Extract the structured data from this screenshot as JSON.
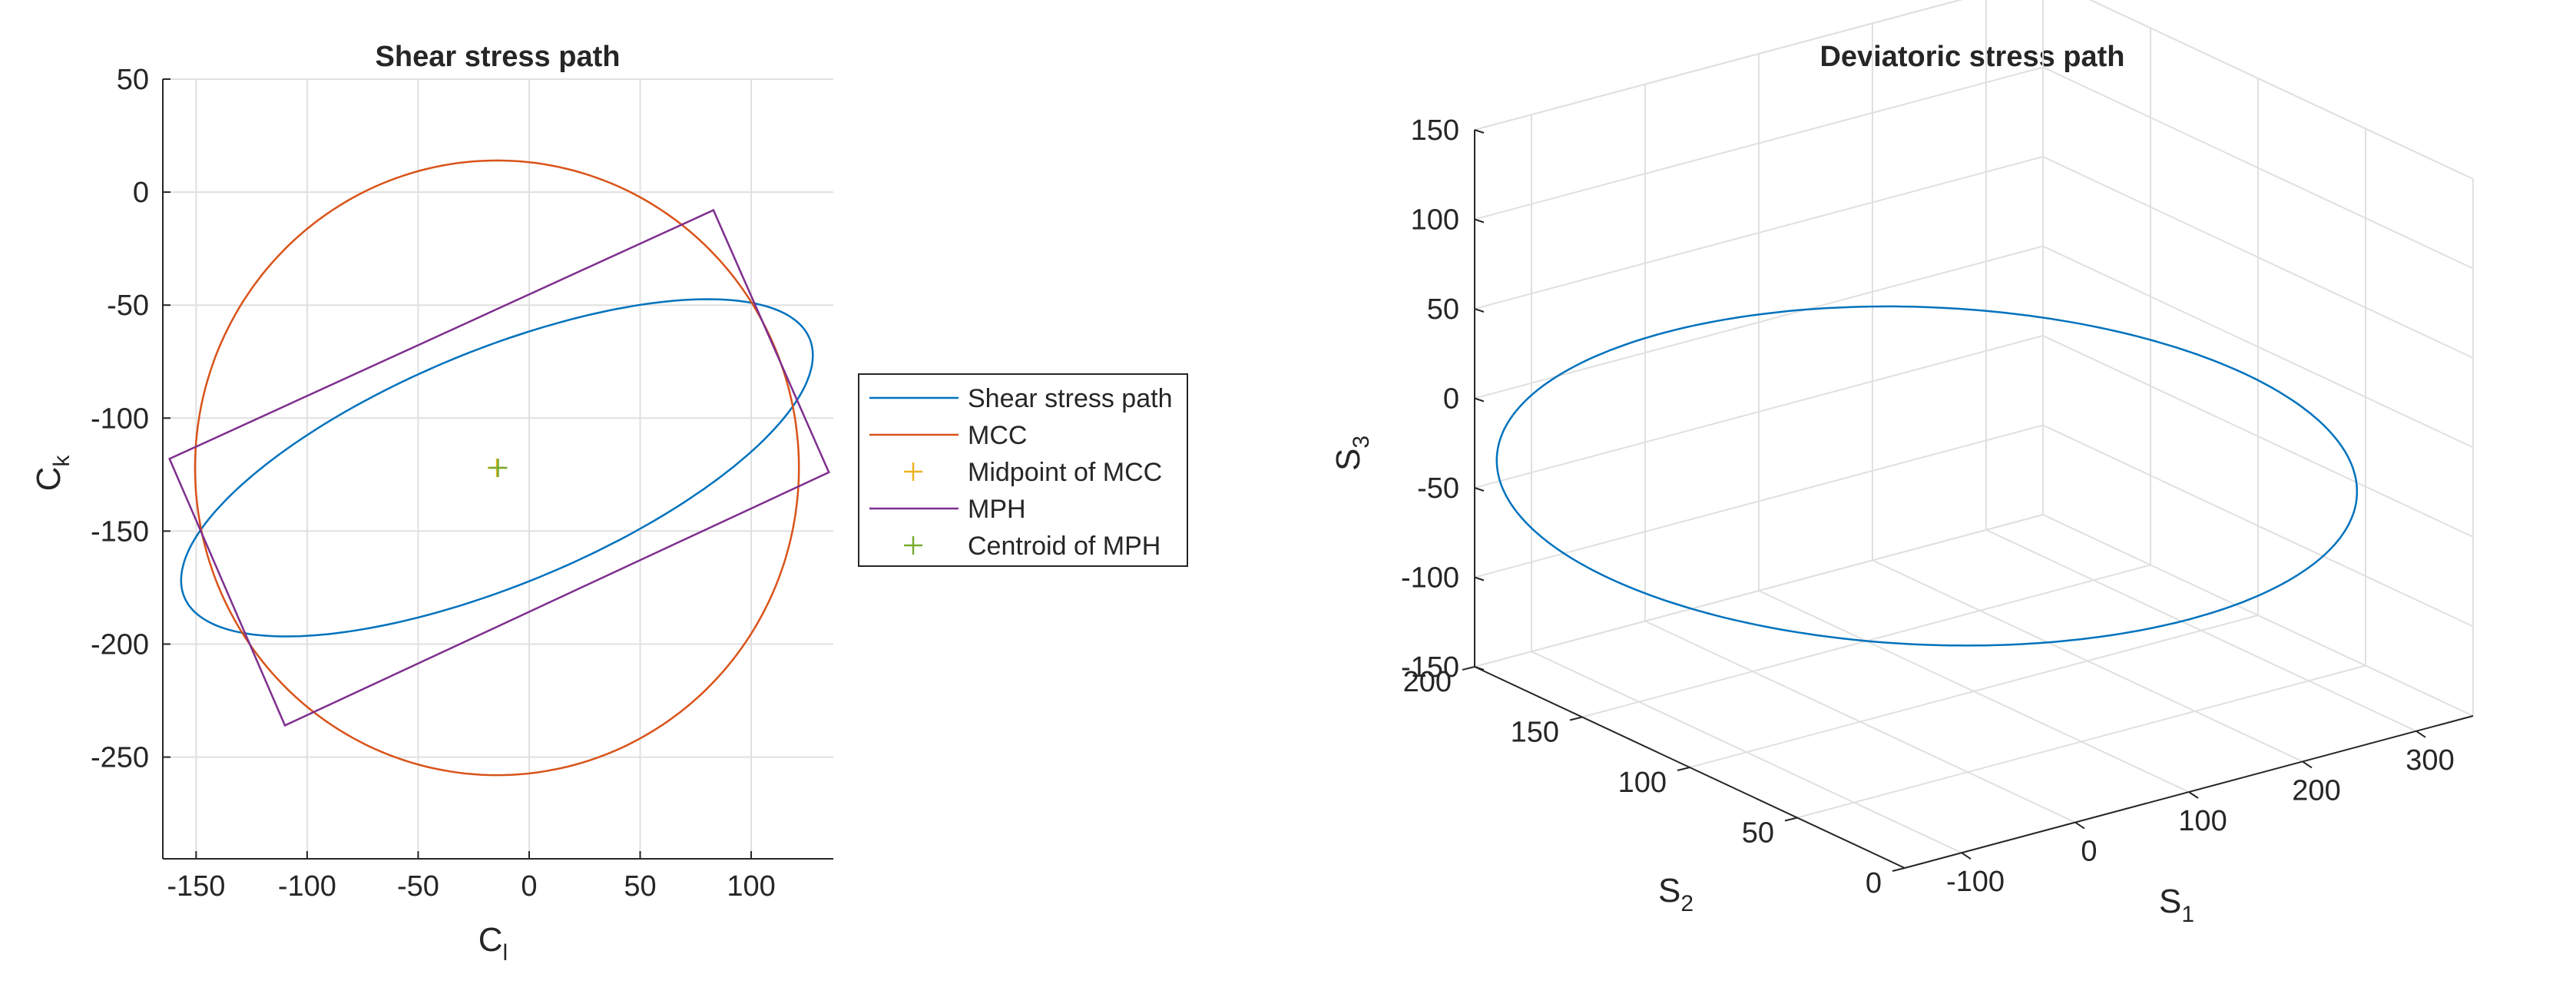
{
  "colors": {
    "blue": "#0072BD",
    "orange": "#D95319",
    "yellow": "#EDB120",
    "purple": "#7E2F8E",
    "green": "#77AC30",
    "text": "#262626",
    "grid": "#e0e0e0"
  },
  "chart_data": [
    {
      "type": "line",
      "title": "Shear stress path",
      "xlabel": "C",
      "xlabel_sub": "l",
      "ylabel": "C",
      "ylabel_sub": "k",
      "xlim": [
        -165,
        137
      ],
      "ylim": [
        -295,
        50
      ],
      "xticks": [
        -150,
        -100,
        -50,
        0,
        50,
        100
      ],
      "yticks": [
        -250,
        -200,
        -150,
        -100,
        -50,
        0,
        50
      ],
      "grid": true,
      "legend_position": "outside-right",
      "series": [
        {
          "name": "Shear stress path",
          "kind": "ellipse",
          "color": "blue",
          "center": [
            -14.5,
            -122
          ],
          "semi_major": 152,
          "semi_minor": 52,
          "angle_deg": 22
        },
        {
          "name": "MCC",
          "kind": "circle",
          "color": "orange",
          "center": [
            -14.5,
            -122
          ],
          "radius": 136
        },
        {
          "name": "Midpoint of MCC",
          "kind": "marker",
          "color": "yellow",
          "point": [
            -14.5,
            -122
          ]
        },
        {
          "name": "MPH",
          "kind": "polygon",
          "color": "purple",
          "vertices": [
            [
              -162,
              -118
            ],
            [
              83,
              -8
            ],
            [
              135,
              -124
            ],
            [
              -110,
              -236
            ]
          ]
        },
        {
          "name": "Centroid of MPH",
          "kind": "marker",
          "color": "green",
          "point": [
            -14,
            -122
          ]
        }
      ]
    },
    {
      "type": "line3d",
      "title": "Deviatoric stress path",
      "xlabel": "S",
      "xlabel_sub": "1",
      "ylabel": "S",
      "ylabel_sub": "2",
      "zlabel": "S",
      "zlabel_sub": "3",
      "xlim": [
        -150,
        350
      ],
      "ylim": [
        0,
        200
      ],
      "zlim": [
        -150,
        150
      ],
      "xticks": [
        -100,
        0,
        100,
        200,
        300
      ],
      "yticks": [
        0,
        50,
        100,
        150,
        200
      ],
      "zticks": [
        -150,
        -100,
        -50,
        0,
        50,
        100,
        150
      ],
      "grid": true,
      "series": [
        {
          "name": "Deviatoric stress path",
          "kind": "ellipse",
          "color": "blue",
          "center": [
            53,
            97,
            -20
          ],
          "semi_axes": [
            165,
            160,
            25
          ]
        }
      ]
    }
  ]
}
